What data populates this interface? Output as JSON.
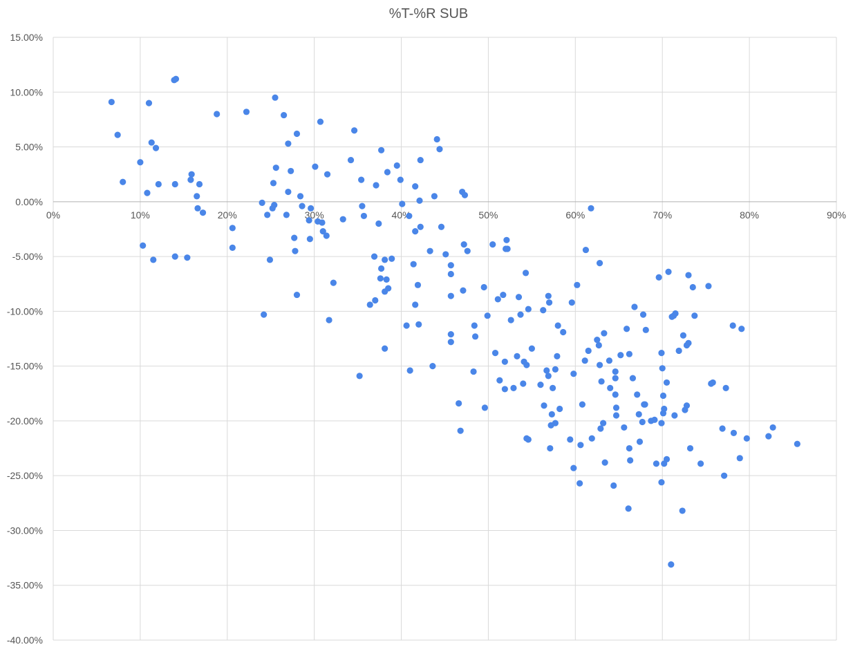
{
  "chart_data": {
    "type": "scatter",
    "title": "%T-%R SUB",
    "xlabel": "",
    "ylabel": "",
    "xlim": [
      0,
      0.9
    ],
    "ylim": [
      -0.4,
      0.15
    ],
    "x_ticks": [
      {
        "value": 0.0,
        "label": "0%"
      },
      {
        "value": 0.1,
        "label": "10%"
      },
      {
        "value": 0.2,
        "label": "20%"
      },
      {
        "value": 0.3,
        "label": "30%"
      },
      {
        "value": 0.4,
        "label": "40%"
      },
      {
        "value": 0.5,
        "label": "50%"
      },
      {
        "value": 0.6,
        "label": "60%"
      },
      {
        "value": 0.7,
        "label": "70%"
      },
      {
        "value": 0.8,
        "label": "80%"
      },
      {
        "value": 0.9,
        "label": "90%"
      }
    ],
    "y_ticks": [
      {
        "value": 0.15,
        "label": "15.00%"
      },
      {
        "value": 0.1,
        "label": "10.00%"
      },
      {
        "value": 0.05,
        "label": "5.00%"
      },
      {
        "value": 0.0,
        "label": "0.00%"
      },
      {
        "value": -0.05,
        "label": "-5.00%"
      },
      {
        "value": -0.1,
        "label": "-10.00%"
      },
      {
        "value": -0.15,
        "label": "-15.00%"
      },
      {
        "value": -0.2,
        "label": "-20.00%"
      },
      {
        "value": -0.25,
        "label": "-25.00%"
      },
      {
        "value": -0.3,
        "label": "-30.00%"
      },
      {
        "value": -0.35,
        "label": "-35.00%"
      },
      {
        "value": -0.4,
        "label": "-40.00%"
      }
    ],
    "grid": true,
    "marker_color": "#4a86e8",
    "points": [
      [
        0.067,
        0.091
      ],
      [
        0.074,
        0.061
      ],
      [
        0.08,
        0.018
      ],
      [
        0.1,
        0.036
      ],
      [
        0.103,
        -0.04
      ],
      [
        0.108,
        0.008
      ],
      [
        0.11,
        0.09
      ],
      [
        0.113,
        0.054
      ],
      [
        0.115,
        -0.053
      ],
      [
        0.118,
        0.049
      ],
      [
        0.121,
        0.016
      ],
      [
        0.139,
        0.111
      ],
      [
        0.141,
        0.112
      ],
      [
        0.14,
        0.016
      ],
      [
        0.14,
        -0.05
      ],
      [
        0.154,
        -0.051
      ],
      [
        0.158,
        0.02
      ],
      [
        0.159,
        0.025
      ],
      [
        0.165,
        0.005
      ],
      [
        0.166,
        -0.006
      ],
      [
        0.168,
        0.016
      ],
      [
        0.172,
        -0.01
      ],
      [
        0.188,
        0.08
      ],
      [
        0.206,
        -0.024
      ],
      [
        0.206,
        -0.042
      ],
      [
        0.222,
        0.082
      ],
      [
        0.24,
        -0.001
      ],
      [
        0.242,
        -0.103
      ],
      [
        0.246,
        -0.012
      ],
      [
        0.249,
        -0.053
      ],
      [
        0.252,
        -0.006
      ],
      [
        0.253,
        0.017
      ],
      [
        0.254,
        -0.003
      ],
      [
        0.255,
        0.095
      ],
      [
        0.256,
        0.031
      ],
      [
        0.265,
        0.079
      ],
      [
        0.268,
        -0.012
      ],
      [
        0.27,
        0.053
      ],
      [
        0.27,
        0.009
      ],
      [
        0.273,
        0.028
      ],
      [
        0.277,
        -0.033
      ],
      [
        0.278,
        -0.045
      ],
      [
        0.28,
        0.062
      ],
      [
        0.28,
        -0.085
      ],
      [
        0.284,
        0.005
      ],
      [
        0.286,
        -0.004
      ],
      [
        0.294,
        -0.017
      ],
      [
        0.295,
        -0.034
      ],
      [
        0.296,
        -0.006
      ],
      [
        0.301,
        0.032
      ],
      [
        0.304,
        -0.018
      ],
      [
        0.307,
        0.073
      ],
      [
        0.309,
        -0.019
      ],
      [
        0.31,
        -0.027
      ],
      [
        0.314,
        -0.031
      ],
      [
        0.315,
        0.025
      ],
      [
        0.317,
        -0.108
      ],
      [
        0.322,
        -0.074
      ],
      [
        0.333,
        -0.016
      ],
      [
        0.342,
        0.038
      ],
      [
        0.346,
        0.065
      ],
      [
        0.352,
        -0.159
      ],
      [
        0.354,
        0.02
      ],
      [
        0.355,
        -0.004
      ],
      [
        0.357,
        -0.013
      ],
      [
        0.364,
        -0.094
      ],
      [
        0.369,
        -0.05
      ],
      [
        0.37,
        -0.09
      ],
      [
        0.371,
        0.015
      ],
      [
        0.374,
        -0.02
      ],
      [
        0.376,
        -0.07
      ],
      [
        0.377,
        -0.061
      ],
      [
        0.377,
        0.047
      ],
      [
        0.381,
        -0.082
      ],
      [
        0.381,
        -0.053
      ],
      [
        0.381,
        -0.134
      ],
      [
        0.383,
        -0.071
      ],
      [
        0.384,
        0.027
      ],
      [
        0.385,
        -0.079
      ],
      [
        0.389,
        -0.052
      ],
      [
        0.395,
        0.033
      ],
      [
        0.399,
        0.02
      ],
      [
        0.401,
        -0.002
      ],
      [
        0.406,
        -0.113
      ],
      [
        0.409,
        -0.013
      ],
      [
        0.41,
        -0.154
      ],
      [
        0.414,
        -0.057
      ],
      [
        0.416,
        -0.027
      ],
      [
        0.416,
        -0.094
      ],
      [
        0.416,
        0.014
      ],
      [
        0.419,
        -0.076
      ],
      [
        0.42,
        -0.112
      ],
      [
        0.421,
        0.001
      ],
      [
        0.422,
        0.038
      ],
      [
        0.422,
        -0.023
      ],
      [
        0.433,
        -0.045
      ],
      [
        0.436,
        -0.15
      ],
      [
        0.438,
        0.005
      ],
      [
        0.441,
        0.057
      ],
      [
        0.444,
        0.048
      ],
      [
        0.446,
        -0.023
      ],
      [
        0.451,
        -0.048
      ],
      [
        0.457,
        -0.058
      ],
      [
        0.457,
        -0.066
      ],
      [
        0.457,
        -0.086
      ],
      [
        0.457,
        -0.121
      ],
      [
        0.457,
        -0.128
      ],
      [
        0.466,
        -0.184
      ],
      [
        0.468,
        -0.209
      ],
      [
        0.47,
        0.009
      ],
      [
        0.471,
        -0.081
      ],
      [
        0.472,
        -0.039
      ],
      [
        0.473,
        0.006
      ],
      [
        0.476,
        -0.045
      ],
      [
        0.483,
        -0.155
      ],
      [
        0.484,
        -0.113
      ],
      [
        0.485,
        -0.123
      ],
      [
        0.495,
        -0.078
      ],
      [
        0.496,
        -0.188
      ],
      [
        0.499,
        -0.104
      ],
      [
        0.505,
        -0.039
      ],
      [
        0.508,
        -0.138
      ],
      [
        0.511,
        -0.089
      ],
      [
        0.513,
        -0.163
      ],
      [
        0.517,
        -0.085
      ],
      [
        0.519,
        -0.171
      ],
      [
        0.519,
        -0.146
      ],
      [
        0.52,
        -0.043
      ],
      [
        0.521,
        -0.035
      ],
      [
        0.522,
        -0.043
      ],
      [
        0.526,
        -0.108
      ],
      [
        0.529,
        -0.17
      ],
      [
        0.533,
        -0.141
      ],
      [
        0.535,
        -0.087
      ],
      [
        0.537,
        -0.103
      ],
      [
        0.54,
        -0.166
      ],
      [
        0.541,
        -0.146
      ],
      [
        0.543,
        -0.065
      ],
      [
        0.544,
        -0.149
      ],
      [
        0.544,
        -0.216
      ],
      [
        0.546,
        -0.217
      ],
      [
        0.546,
        -0.098
      ],
      [
        0.55,
        -0.134
      ],
      [
        0.56,
        -0.167
      ],
      [
        0.563,
        -0.099
      ],
      [
        0.564,
        -0.186
      ],
      [
        0.567,
        -0.154
      ],
      [
        0.569,
        -0.086
      ],
      [
        0.569,
        -0.159
      ],
      [
        0.57,
        -0.092
      ],
      [
        0.571,
        -0.225
      ],
      [
        0.572,
        -0.204
      ],
      [
        0.573,
        -0.194
      ],
      [
        0.574,
        -0.17
      ],
      [
        0.577,
        -0.153
      ],
      [
        0.577,
        -0.202
      ],
      [
        0.579,
        -0.141
      ],
      [
        0.58,
        -0.113
      ],
      [
        0.582,
        -0.189
      ],
      [
        0.586,
        -0.119
      ],
      [
        0.594,
        -0.217
      ],
      [
        0.596,
        -0.092
      ],
      [
        0.598,
        -0.157
      ],
      [
        0.598,
        -0.243
      ],
      [
        0.602,
        -0.076
      ],
      [
        0.605,
        -0.257
      ],
      [
        0.606,
        -0.222
      ],
      [
        0.608,
        -0.185
      ],
      [
        0.611,
        -0.145
      ],
      [
        0.612,
        -0.044
      ],
      [
        0.615,
        -0.136
      ],
      [
        0.618,
        -0.006
      ],
      [
        0.619,
        -0.216
      ],
      [
        0.625,
        -0.126
      ],
      [
        0.627,
        -0.131
      ],
      [
        0.628,
        -0.056
      ],
      [
        0.628,
        -0.149
      ],
      [
        0.629,
        -0.207
      ],
      [
        0.63,
        -0.164
      ],
      [
        0.632,
        -0.202
      ],
      [
        0.633,
        -0.12
      ],
      [
        0.634,
        -0.238
      ],
      [
        0.639,
        -0.145
      ],
      [
        0.64,
        -0.17
      ],
      [
        0.644,
        -0.259
      ],
      [
        0.646,
        -0.176
      ],
      [
        0.646,
        -0.155
      ],
      [
        0.646,
        -0.161
      ],
      [
        0.647,
        -0.188
      ],
      [
        0.647,
        -0.195
      ],
      [
        0.652,
        -0.14
      ],
      [
        0.656,
        -0.206
      ],
      [
        0.659,
        -0.116
      ],
      [
        0.661,
        -0.28
      ],
      [
        0.662,
        -0.139
      ],
      [
        0.662,
        -0.225
      ],
      [
        0.663,
        -0.236
      ],
      [
        0.666,
        -0.161
      ],
      [
        0.668,
        -0.096
      ],
      [
        0.671,
        -0.176
      ],
      [
        0.673,
        -0.194
      ],
      [
        0.674,
        -0.219
      ],
      [
        0.677,
        -0.201
      ],
      [
        0.678,
        -0.103
      ],
      [
        0.679,
        -0.185
      ],
      [
        0.68,
        -0.185
      ],
      [
        0.681,
        -0.117
      ],
      [
        0.687,
        -0.2
      ],
      [
        0.691,
        -0.199
      ],
      [
        0.693,
        -0.239
      ],
      [
        0.696,
        -0.069
      ],
      [
        0.699,
        -0.138
      ],
      [
        0.699,
        -0.202
      ],
      [
        0.699,
        -0.256
      ],
      [
        0.7,
        -0.152
      ],
      [
        0.701,
        -0.177
      ],
      [
        0.701,
        -0.193
      ],
      [
        0.702,
        -0.189
      ],
      [
        0.702,
        -0.239
      ],
      [
        0.705,
        -0.165
      ],
      [
        0.705,
        -0.235
      ],
      [
        0.707,
        -0.064
      ],
      [
        0.71,
        -0.331
      ],
      [
        0.711,
        -0.105
      ],
      [
        0.713,
        -0.104
      ],
      [
        0.714,
        -0.195
      ],
      [
        0.715,
        -0.102
      ],
      [
        0.719,
        -0.136
      ],
      [
        0.723,
        -0.282
      ],
      [
        0.724,
        -0.122
      ],
      [
        0.726,
        -0.19
      ],
      [
        0.728,
        -0.186
      ],
      [
        0.728,
        -0.131
      ],
      [
        0.73,
        -0.129
      ],
      [
        0.73,
        -0.067
      ],
      [
        0.732,
        -0.225
      ],
      [
        0.735,
        -0.078
      ],
      [
        0.737,
        -0.104
      ],
      [
        0.744,
        -0.239
      ],
      [
        0.753,
        -0.077
      ],
      [
        0.756,
        -0.166
      ],
      [
        0.758,
        -0.165
      ],
      [
        0.769,
        -0.207
      ],
      [
        0.771,
        -0.25
      ],
      [
        0.773,
        -0.17
      ],
      [
        0.781,
        -0.113
      ],
      [
        0.782,
        -0.211
      ],
      [
        0.789,
        -0.234
      ],
      [
        0.791,
        -0.116
      ],
      [
        0.797,
        -0.216
      ],
      [
        0.822,
        -0.214
      ],
      [
        0.827,
        -0.206
      ],
      [
        0.855,
        -0.221
      ]
    ]
  }
}
